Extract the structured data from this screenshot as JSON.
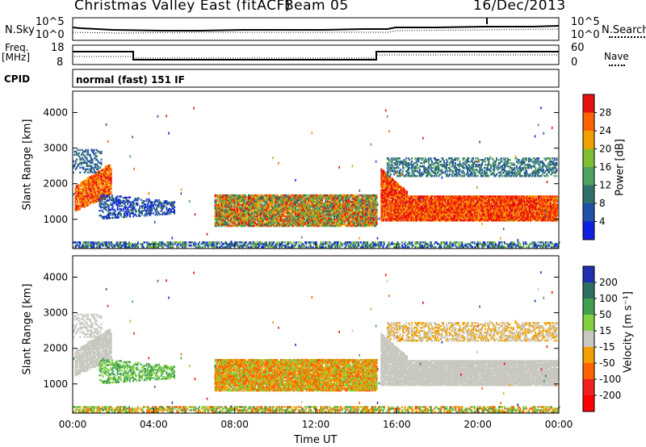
{
  "header": {
    "title": "Christmas Valley East (fitACF)",
    "beam": "Beam 05",
    "date": "16/Dec/2013"
  },
  "top_panels": {
    "nsky_label": "N.Sky",
    "nsearch_label": "N.Search",
    "noise_tick_high": "10^5",
    "noise_tick_low": "10^0",
    "freq_label": "Freq.",
    "freq_unit": "[MHz]",
    "freq_ticks": [
      "18",
      "8"
    ],
    "nave_label": "Nave",
    "nave_ticks": [
      "60",
      "0"
    ],
    "cpid_label": "CPID",
    "cpid_value": "normal (fast) 151 IF"
  },
  "chart_data": [
    {
      "type": "heatmap",
      "title": "Power",
      "ylabel": "Slant Range [km]",
      "xlabel": "",
      "x_range": [
        "00:00",
        "24:00"
      ],
      "ylim": [
        180,
        4600
      ],
      "y_ticks": [
        1000,
        2000,
        3000,
        4000
      ],
      "colorbar_label": "Power [dB]",
      "colorbar_ticks": [
        "4",
        "8",
        "12",
        "16",
        "20",
        "24",
        "28"
      ],
      "colorbar_range": [
        0,
        32
      ],
      "colors": [
        "#1020e0",
        "#2050a8",
        "#30706a",
        "#50a060",
        "#80c030",
        "#f0a000",
        "#ff6000",
        "#e81010"
      ]
    },
    {
      "type": "heatmap",
      "title": "Velocity",
      "ylabel": "Slant Range [km]",
      "xlabel": "Time UT",
      "x_ticks": [
        "00:00",
        "04:00",
        "08:00",
        "12:00",
        "16:00",
        "20:00",
        "00:00"
      ],
      "ylim": [
        180,
        4600
      ],
      "y_ticks": [
        1000,
        2000,
        3000,
        4000
      ],
      "colorbar_label": "Velocity [m s⁻¹]",
      "colorbar_ticks": [
        "200",
        "100",
        "50",
        "15",
        "-15",
        "-50",
        "-100",
        "-200"
      ],
      "colorbar_range": [
        -250,
        250
      ],
      "colors": [
        "#2030b0",
        "#307060",
        "#40a050",
        "#80d040",
        "#c8c8c0",
        "#f0a000",
        "#ff6000",
        "#f02020",
        "#ff0000"
      ]
    }
  ]
}
